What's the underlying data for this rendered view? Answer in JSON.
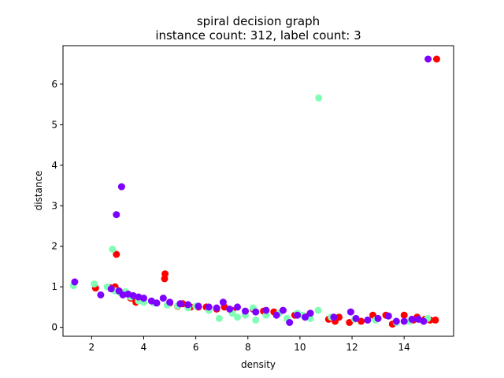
{
  "chart_data": {
    "type": "scatter",
    "title": [
      "spiral decision graph",
      "instance count: 312, label count: 3"
    ],
    "xlabel": "density",
    "ylabel": "distance",
    "xlim": [
      0.9,
      15.9
    ],
    "ylim": [
      -0.22,
      6.95
    ],
    "xticks": [
      2,
      4,
      6,
      8,
      10,
      12,
      14
    ],
    "yticks": [
      0,
      1,
      2,
      3,
      4,
      5,
      6
    ],
    "grid": false,
    "legend": "none",
    "colors": {
      "red": "#ff0000",
      "aqua": "#80ffb4",
      "purple": "#8000ff"
    },
    "series": [
      {
        "color": "red",
        "points": [
          [
            2.15,
            0.97
          ],
          [
            2.7,
            0.98
          ],
          [
            2.9,
            1.0
          ],
          [
            2.95,
            1.8
          ],
          [
            3.2,
            0.85
          ],
          [
            3.5,
            0.72
          ],
          [
            3.7,
            0.62
          ],
          [
            3.9,
            0.7
          ],
          [
            4.8,
            1.2
          ],
          [
            4.82,
            1.32
          ],
          [
            5.0,
            0.6
          ],
          [
            5.3,
            0.52
          ],
          [
            5.5,
            0.58
          ],
          [
            5.8,
            0.5
          ],
          [
            6.1,
            0.5
          ],
          [
            6.4,
            0.5
          ],
          [
            6.8,
            0.45
          ],
          [
            7.1,
            0.5
          ],
          [
            7.4,
            0.42
          ],
          [
            8.2,
            0.45
          ],
          [
            8.6,
            0.4
          ],
          [
            9.0,
            0.38
          ],
          [
            9.8,
            0.3
          ],
          [
            10.3,
            0.27
          ],
          [
            11.1,
            0.2
          ],
          [
            11.35,
            0.15
          ],
          [
            11.5,
            0.25
          ],
          [
            11.9,
            0.12
          ],
          [
            12.35,
            0.15
          ],
          [
            12.8,
            0.3
          ],
          [
            13.3,
            0.3
          ],
          [
            13.55,
            0.08
          ],
          [
            14.0,
            0.3
          ],
          [
            14.35,
            0.18
          ],
          [
            14.5,
            0.25
          ],
          [
            14.8,
            0.2
          ],
          [
            15.0,
            0.18
          ],
          [
            15.2,
            0.18
          ],
          [
            15.25,
            6.62
          ]
        ]
      },
      {
        "color": "aqua",
        "points": [
          [
            1.3,
            1.03
          ],
          [
            2.1,
            1.07
          ],
          [
            2.6,
            1.0
          ],
          [
            2.8,
            1.93
          ],
          [
            2.9,
            0.9
          ],
          [
            3.1,
            0.85
          ],
          [
            3.3,
            0.88
          ],
          [
            3.5,
            0.75
          ],
          [
            3.8,
            0.65
          ],
          [
            4.0,
            0.62
          ],
          [
            4.4,
            0.6
          ],
          [
            4.9,
            0.55
          ],
          [
            5.3,
            0.53
          ],
          [
            5.7,
            0.48
          ],
          [
            6.0,
            0.52
          ],
          [
            6.5,
            0.42
          ],
          [
            6.9,
            0.22
          ],
          [
            7.4,
            0.35
          ],
          [
            7.6,
            0.25
          ],
          [
            7.9,
            0.3
          ],
          [
            8.2,
            0.48
          ],
          [
            8.3,
            0.18
          ],
          [
            8.7,
            0.3
          ],
          [
            9.2,
            0.35
          ],
          [
            9.5,
            0.22
          ],
          [
            9.9,
            0.35
          ],
          [
            10.1,
            0.3
          ],
          [
            10.4,
            0.22
          ],
          [
            10.7,
            0.42
          ],
          [
            10.72,
            5.66
          ],
          [
            11.2,
            0.25
          ],
          [
            12.1,
            0.2
          ],
          [
            12.9,
            0.18
          ],
          [
            13.7,
            0.12
          ],
          [
            14.2,
            0.15
          ],
          [
            14.9,
            0.22
          ]
        ]
      },
      {
        "color": "purple",
        "points": [
          [
            1.35,
            1.12
          ],
          [
            2.35,
            0.8
          ],
          [
            2.75,
            0.95
          ],
          [
            2.95,
            2.78
          ],
          [
            3.05,
            0.9
          ],
          [
            3.15,
            3.47
          ],
          [
            3.2,
            0.8
          ],
          [
            3.4,
            0.82
          ],
          [
            3.6,
            0.78
          ],
          [
            3.8,
            0.75
          ],
          [
            4.0,
            0.72
          ],
          [
            4.3,
            0.65
          ],
          [
            4.5,
            0.6
          ],
          [
            4.75,
            0.72
          ],
          [
            5.0,
            0.62
          ],
          [
            5.4,
            0.58
          ],
          [
            5.7,
            0.56
          ],
          [
            6.1,
            0.52
          ],
          [
            6.5,
            0.5
          ],
          [
            6.8,
            0.48
          ],
          [
            7.05,
            0.62
          ],
          [
            7.3,
            0.45
          ],
          [
            7.6,
            0.5
          ],
          [
            7.9,
            0.4
          ],
          [
            8.3,
            0.38
          ],
          [
            8.7,
            0.42
          ],
          [
            9.1,
            0.3
          ],
          [
            9.35,
            0.42
          ],
          [
            9.6,
            0.12
          ],
          [
            9.9,
            0.3
          ],
          [
            10.2,
            0.25
          ],
          [
            10.4,
            0.35
          ],
          [
            11.3,
            0.25
          ],
          [
            11.95,
            0.38
          ],
          [
            12.15,
            0.22
          ],
          [
            12.6,
            0.18
          ],
          [
            13.0,
            0.22
          ],
          [
            13.4,
            0.28
          ],
          [
            13.7,
            0.15
          ],
          [
            14.0,
            0.15
          ],
          [
            14.3,
            0.2
          ],
          [
            14.55,
            0.2
          ],
          [
            14.75,
            0.15
          ],
          [
            14.92,
            6.62
          ]
        ]
      }
    ]
  }
}
